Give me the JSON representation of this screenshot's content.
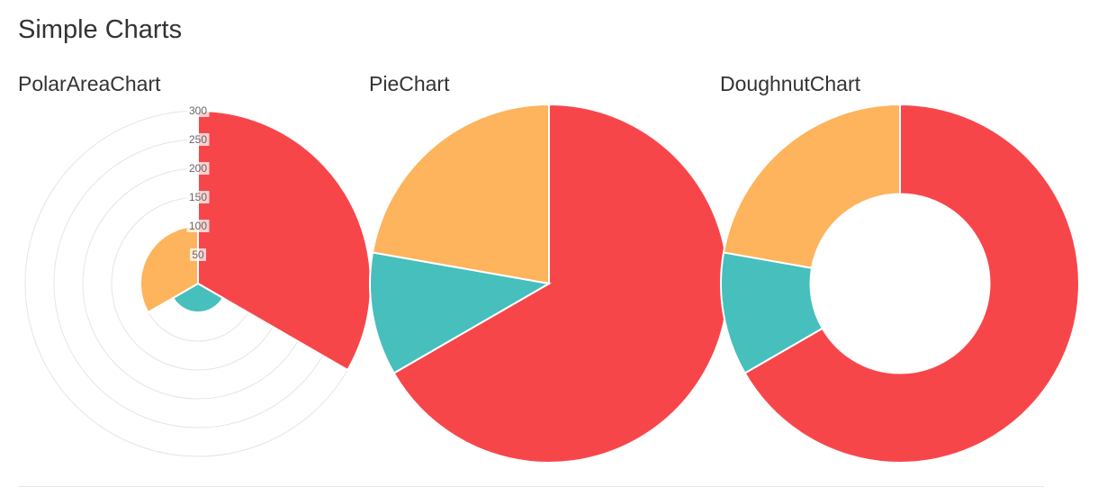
{
  "page": {
    "title": "Simple Charts"
  },
  "colors": {
    "red": "#F7464A",
    "teal": "#46BFBD",
    "orange": "#FDB45C",
    "grid": "#e5e5e5",
    "segment_stroke": "#ffffff",
    "tick_backdrop": "#ffffff"
  },
  "chart_data": [
    {
      "type": "polarArea",
      "title": "PolarAreaChart",
      "labels": [
        "",
        "",
        ""
      ],
      "values": [
        300,
        50,
        100
      ],
      "colors": [
        "#F7464A",
        "#46BFBD",
        "#FDB45C"
      ],
      "rlim": [
        0,
        300
      ],
      "ticks": [
        50,
        100,
        150,
        200,
        250,
        300
      ],
      "grid": true
    },
    {
      "type": "pie",
      "title": "PieChart",
      "values": [
        300,
        50,
        100
      ],
      "colors": [
        "#F7464A",
        "#46BFBD",
        "#FDB45C"
      ]
    },
    {
      "type": "doughnut",
      "title": "DoughnutChart",
      "values": [
        300,
        50,
        100
      ],
      "colors": [
        "#F7464A",
        "#46BFBD",
        "#FDB45C"
      ],
      "cutout_percent": 50
    }
  ]
}
